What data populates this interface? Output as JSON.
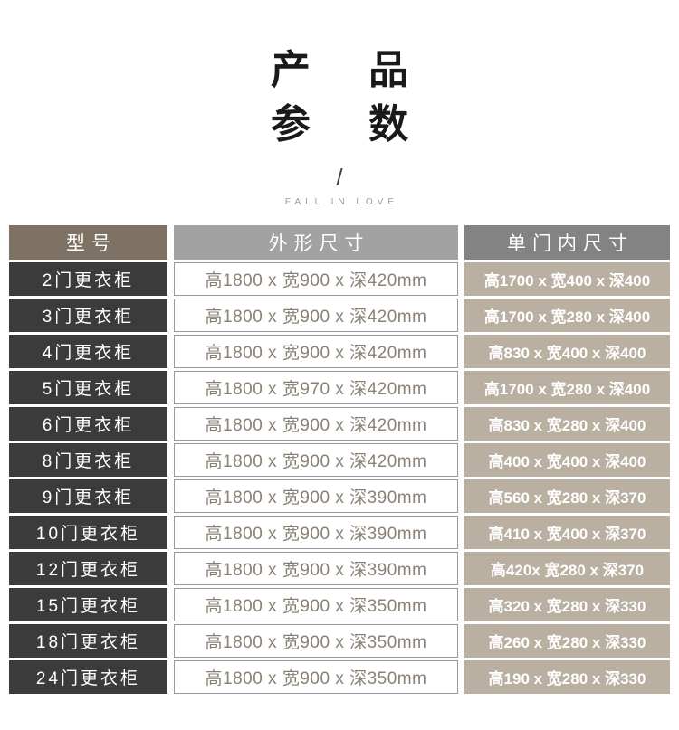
{
  "header": {
    "title_line1": "产 品",
    "title_line2": "参 数",
    "divider": "/",
    "subtitle": "FALL IN LOVE"
  },
  "table": {
    "columns": {
      "model": "型号",
      "outer": "外形尺寸",
      "inner": "单门内尺寸"
    },
    "rows": [
      {
        "model": "2门更衣柜",
        "outer": "高1800 x 宽900 x 深420mm",
        "inner": "高1700 x 宽400 x 深400"
      },
      {
        "model": "3门更衣柜",
        "outer": "高1800 x 宽900 x 深420mm",
        "inner": "高1700 x 宽280 x 深400"
      },
      {
        "model": "4门更衣柜",
        "outer": "高1800 x 宽900 x 深420mm",
        "inner": "高830 x 宽400 x 深400"
      },
      {
        "model": "5门更衣柜",
        "outer": "高1800 x 宽970 x 深420mm",
        "inner": "高1700 x 宽280 x 深400"
      },
      {
        "model": "6门更衣柜",
        "outer": "高1800 x 宽900 x 深420mm",
        "inner": "高830 x 宽280 x 深400"
      },
      {
        "model": "8门更衣柜",
        "outer": "高1800 x 宽900 x 深420mm",
        "inner": "高400 x 宽400 x 深400"
      },
      {
        "model": "9门更衣柜",
        "outer": "高1800 x 宽900 x 深390mm",
        "inner": "高560 x 宽280 x 深370"
      },
      {
        "model": "10门更衣柜",
        "outer": "高1800 x 宽900 x 深390mm",
        "inner": "高410 x 宽400 x 深370"
      },
      {
        "model": "12门更衣柜",
        "outer": "高1800 x 宽900 x 深390mm",
        "inner": "高420x 宽280 x 深370"
      },
      {
        "model": "15门更衣柜",
        "outer": "高1800 x 宽900 x 深350mm",
        "inner": "高320 x 宽280 x 深330"
      },
      {
        "model": "18门更衣柜",
        "outer": "高1800 x 宽900 x 深350mm",
        "inner": "高260 x 宽280 x 深330"
      },
      {
        "model": "24门更衣柜",
        "outer": "高1800 x 宽900 x 深350mm",
        "inner": "高190 x 宽280 x 深330"
      }
    ]
  },
  "colors": {
    "model_header_bg": "#7d7264",
    "outer_header_bg": "#a2a2a2",
    "inner_header_bg": "#838383",
    "model_cell_bg": "#3b3b3b",
    "outer_cell_text": "#8b8173",
    "outer_cell_border": "#9a9a9a",
    "inner_cell_bg": "#b9b0a2",
    "header_text": "#ffffff"
  }
}
